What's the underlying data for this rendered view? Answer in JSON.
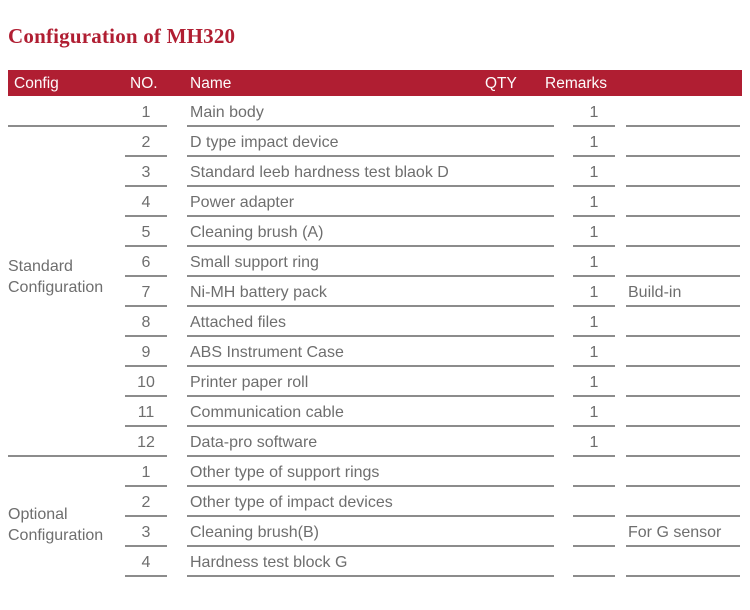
{
  "page": {
    "title": "Configuration of MH320"
  },
  "colors": {
    "accent": "#B01E32",
    "header_text": "#FDFBFB",
    "body_text": "#6E6E6E",
    "line": "#8C8C8C"
  },
  "table": {
    "headers": {
      "config": "Config",
      "no": "NO.",
      "name": "Name",
      "qty": "QTY",
      "remarks": "Remarks"
    },
    "sections": [
      {
        "label_line1": "Standard",
        "label_line2": "Configuration",
        "rows": [
          {
            "no": "1",
            "name": "Main body",
            "qty": "1",
            "remarks": ""
          },
          {
            "no": "2",
            "name": "D type impact device",
            "qty": "1",
            "remarks": ""
          },
          {
            "no": "3",
            "name": "Standard leeb hardness test blaok D",
            "qty": "1",
            "remarks": ""
          },
          {
            "no": "4",
            "name": "Power adapter",
            "qty": "1",
            "remarks": ""
          },
          {
            "no": "5",
            "name": "Cleaning brush (A)",
            "qty": "1",
            "remarks": ""
          },
          {
            "no": "6",
            "name": "Small support ring",
            "qty": "1",
            "remarks": ""
          },
          {
            "no": "7",
            "name": "Ni-MH battery pack",
            "qty": "1",
            "remarks": "Build-in"
          },
          {
            "no": "8",
            "name": "Attached files",
            "qty": "1",
            "remarks": ""
          },
          {
            "no": "9",
            "name": "ABS Instrument Case",
            "qty": "1",
            "remarks": ""
          },
          {
            "no": "10",
            "name": "Printer paper roll",
            "qty": "1",
            "remarks": ""
          },
          {
            "no": "11",
            "name": "Communication cable",
            "qty": "1",
            "remarks": ""
          },
          {
            "no": "12",
            "name": "Data-pro software",
            "qty": "1",
            "remarks": ""
          }
        ]
      },
      {
        "label_line1": "Optional",
        "label_line2": "Configuration",
        "rows": [
          {
            "no": "1",
            "name": "Other type of support rings",
            "qty": "",
            "remarks": ""
          },
          {
            "no": "2",
            "name": "Other type of impact devices",
            "qty": "",
            "remarks": ""
          },
          {
            "no": "3",
            "name": "Cleaning brush(B)",
            "qty": "",
            "remarks": "For G sensor"
          },
          {
            "no": "4",
            "name": "Hardness test block G",
            "qty": "",
            "remarks": ""
          }
        ]
      }
    ]
  }
}
